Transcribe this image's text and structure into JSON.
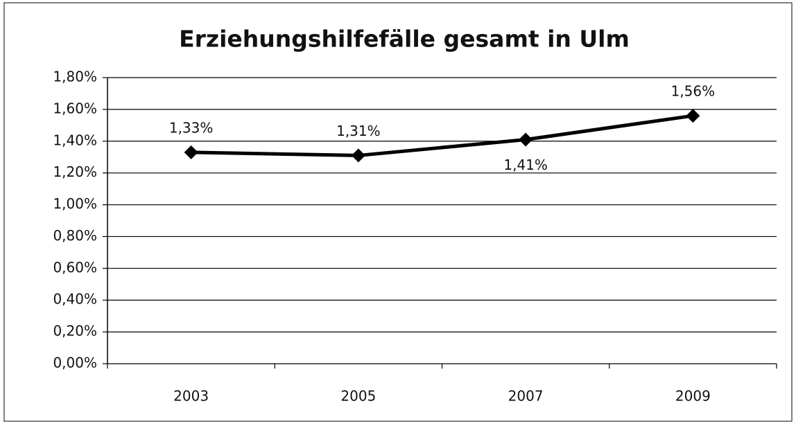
{
  "chart_data": {
    "type": "line",
    "title": "Erziehungshilfefälle gesamt in Ulm",
    "categories": [
      "2003",
      "2005",
      "2007",
      "2009"
    ],
    "series": [
      {
        "name": null,
        "color": "#000000",
        "values": [
          1.33,
          1.31,
          1.41,
          1.56
        ],
        "value_labels": [
          "1,33%",
          "1,31%",
          "1,41%",
          "1,56%"
        ]
      }
    ],
    "ylim": [
      0,
      1.8
    ],
    "yticks": [
      {
        "value": 0,
        "label": "0,00%"
      },
      {
        "value": 0.2,
        "label": "0,20%"
      },
      {
        "value": 0.4,
        "label": "0,40%"
      },
      {
        "value": 0.6,
        "label": "0,60%"
      },
      {
        "value": 0.8,
        "label": "0,80%"
      },
      {
        "value": 1.0,
        "label": "1,00%"
      },
      {
        "value": 1.2,
        "label": "1,20%"
      },
      {
        "value": 1.4,
        "label": "1,40%"
      },
      {
        "value": 1.6,
        "label": "1,60%"
      },
      {
        "value": 1.8,
        "label": "1,80%"
      }
    ],
    "grid": true
  }
}
